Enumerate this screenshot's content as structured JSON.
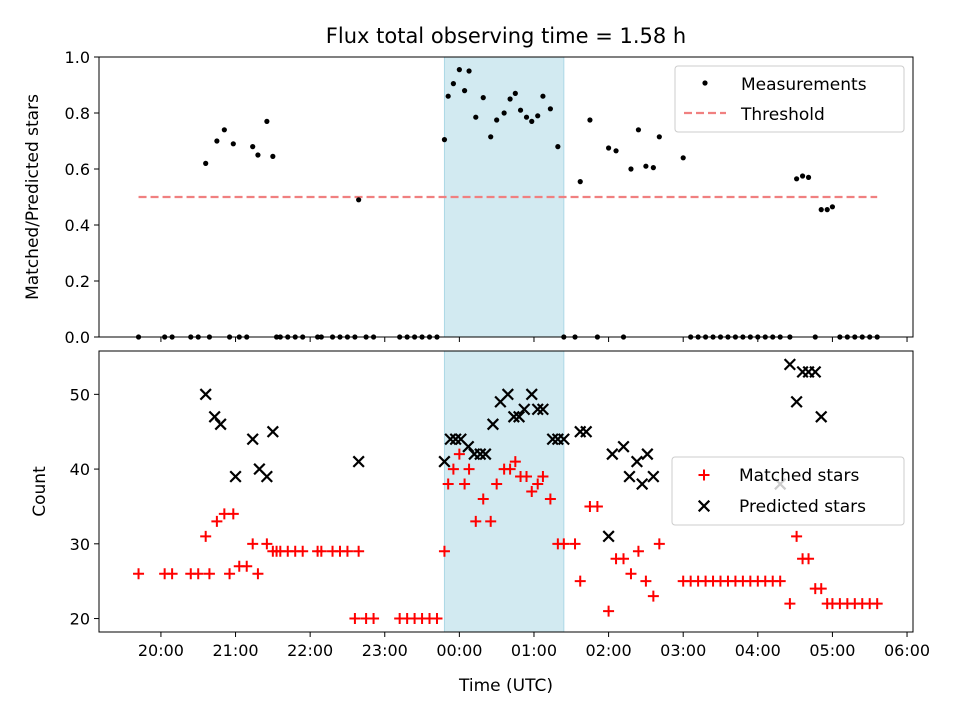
{
  "chart_data": [
    {
      "type": "scatter",
      "title": "Flux total observing time = 1.58 h",
      "xlabel": "",
      "ylabel": "Matched/Predicted stars",
      "xlim": [
        19.17,
        30.08
      ],
      "ylim": [
        0,
        1.0
      ],
      "yticks": [
        0.0,
        0.2,
        0.4,
        0.6,
        0.8,
        1.0
      ],
      "yticklabels": [
        "0.0",
        "0.2",
        "0.4",
        "0.6",
        "0.8",
        "1.0"
      ],
      "legend_position": "top-right",
      "highlight_span": {
        "x": [
          23.8,
          25.4
        ],
        "color": "#add8e6"
      },
      "threshold": {
        "name": "Threshold",
        "y": 0.5,
        "x": [
          19.7,
          29.6
        ],
        "color": "#f08080"
      },
      "series": [
        {
          "name": "Measurements",
          "color": "#000000",
          "x": [
            19.7,
            20.05,
            20.15,
            20.4,
            20.5,
            20.6,
            20.65,
            20.75,
            20.85,
            20.92,
            20.97,
            21.05,
            21.15,
            21.23,
            21.3,
            21.42,
            21.5,
            21.55,
            21.6,
            21.7,
            21.8,
            21.9,
            22.1,
            22.15,
            22.3,
            22.4,
            22.5,
            22.6,
            22.65,
            22.75,
            22.85,
            23.2,
            23.3,
            23.4,
            23.5,
            23.6,
            23.7,
            23.8,
            23.85,
            23.92,
            24.0,
            24.07,
            24.13,
            24.22,
            24.32,
            24.42,
            24.5,
            24.6,
            24.68,
            24.75,
            24.82,
            24.9,
            24.97,
            25.05,
            25.12,
            25.22,
            25.32,
            25.4,
            25.55,
            25.62,
            25.75,
            25.85,
            26.0,
            26.1,
            26.2,
            26.3,
            26.4,
            26.5,
            26.6,
            26.68,
            27.0,
            27.1,
            27.2,
            27.3,
            27.4,
            27.5,
            27.6,
            27.7,
            27.8,
            27.9,
            28.0,
            28.1,
            28.2,
            28.3,
            28.43,
            28.52,
            28.6,
            28.68,
            28.77,
            28.85,
            28.93,
            29.0,
            29.1,
            29.2,
            29.3,
            29.4,
            29.5,
            29.6
          ],
          "y": [
            0.0,
            0.0,
            0.0,
            0.0,
            0.0,
            0.62,
            0.0,
            0.7,
            0.74,
            0.0,
            0.69,
            0.0,
            0.0,
            0.68,
            0.65,
            0.77,
            0.645,
            0.0,
            0.0,
            0.0,
            0.0,
            0.0,
            0.0,
            0.0,
            0.0,
            0.0,
            0.0,
            0.0,
            0.49,
            0.0,
            0.0,
            0.0,
            0.0,
            0.0,
            0.0,
            0.0,
            0.0,
            0.705,
            0.86,
            0.905,
            0.955,
            0.88,
            0.95,
            0.785,
            0.855,
            0.715,
            0.775,
            0.8,
            0.85,
            0.87,
            0.81,
            0.785,
            0.77,
            0.79,
            0.86,
            0.815,
            0.68,
            0.0,
            0.0,
            0.555,
            0.775,
            0.0,
            0.675,
            0.665,
            0.0,
            0.6,
            0.74,
            0.61,
            0.605,
            0.715,
            0.64,
            0.0,
            0.0,
            0.0,
            0.0,
            0.0,
            0.0,
            0.0,
            0.0,
            0.0,
            0.0,
            0.0,
            0.0,
            0.0,
            0.0,
            0.565,
            0.575,
            0.57,
            0.0,
            0.455,
            0.455,
            0.465,
            0.0,
            0.0,
            0.0,
            0.0,
            0.0,
            0.0
          ]
        }
      ]
    },
    {
      "type": "scatter",
      "title": "",
      "xlabel": "Time (UTC)",
      "ylabel": "Count",
      "xlim": [
        19.17,
        30.08
      ],
      "ylim": [
        18.2,
        55.8
      ],
      "yticks": [
        20,
        30,
        40,
        50
      ],
      "yticklabels": [
        "20",
        "30",
        "40",
        "50"
      ],
      "xticks": [
        20,
        21,
        22,
        23,
        24,
        25,
        26,
        27,
        28,
        29,
        30
      ],
      "xticklabels": [
        "20:00",
        "21:00",
        "22:00",
        "23:00",
        "00:00",
        "01:00",
        "02:00",
        "03:00",
        "04:00",
        "05:00",
        "06:00"
      ],
      "legend_position": "center-right",
      "highlight_span": {
        "x": [
          23.8,
          25.4
        ],
        "color": "#add8e6"
      },
      "series": [
        {
          "name": "Matched stars",
          "color": "#ff0000",
          "x": [
            19.7,
            20.05,
            20.15,
            20.4,
            20.5,
            20.6,
            20.65,
            20.75,
            20.85,
            20.92,
            20.97,
            21.05,
            21.15,
            21.23,
            21.3,
            21.42,
            21.5,
            21.55,
            21.6,
            21.7,
            21.8,
            21.9,
            22.1,
            22.15,
            22.3,
            22.4,
            22.5,
            22.6,
            22.65,
            22.75,
            22.85,
            23.2,
            23.3,
            23.4,
            23.5,
            23.6,
            23.7,
            23.8,
            23.85,
            23.92,
            24.0,
            24.07,
            24.13,
            24.22,
            24.32,
            24.42,
            24.5,
            24.6,
            24.68,
            24.75,
            24.82,
            24.9,
            24.97,
            25.05,
            25.12,
            25.22,
            25.32,
            25.4,
            25.55,
            25.62,
            25.75,
            25.85,
            26.0,
            26.1,
            26.2,
            26.3,
            26.4,
            26.5,
            26.6,
            26.68,
            27.0,
            27.1,
            27.2,
            27.3,
            27.4,
            27.5,
            27.6,
            27.7,
            27.8,
            27.9,
            28.0,
            28.1,
            28.2,
            28.3,
            28.43,
            28.52,
            28.6,
            28.68,
            28.77,
            28.85,
            28.93,
            29.0,
            29.1,
            29.2,
            29.3,
            29.4,
            29.5,
            29.6
          ],
          "y": [
            26,
            26,
            26,
            26,
            26,
            31,
            26,
            33,
            34,
            26,
            34,
            27,
            27,
            30,
            26,
            30,
            29,
            29,
            29,
            29,
            29,
            29,
            29,
            29,
            29,
            29,
            29,
            20,
            29,
            20,
            20,
            20,
            20,
            20,
            20,
            20,
            20,
            29,
            38,
            40,
            42,
            38,
            40,
            33,
            36,
            33,
            38,
            40,
            40,
            41,
            39,
            39,
            37,
            38,
            39,
            36,
            30,
            30,
            30,
            25,
            35,
            35,
            21,
            28,
            28,
            26,
            29,
            25,
            23,
            30,
            25,
            25,
            25,
            25,
            25,
            25,
            25,
            25,
            25,
            25,
            25,
            25,
            25,
            25,
            22,
            31,
            28,
            28,
            24,
            24,
            22,
            22,
            22,
            22,
            22,
            22,
            22,
            22
          ]
        },
        {
          "name": "Predicted stars",
          "color": "#000000",
          "x": [
            20.6,
            20.72,
            20.8,
            21.0,
            21.23,
            21.32,
            21.42,
            21.5,
            22.65,
            23.8,
            23.88,
            23.95,
            24.02,
            24.12,
            24.2,
            24.28,
            24.35,
            24.45,
            24.55,
            24.65,
            24.73,
            24.8,
            24.87,
            24.97,
            25.05,
            25.12,
            25.25,
            25.32,
            25.4,
            25.62,
            25.7,
            26.0,
            26.05,
            26.2,
            26.28,
            26.38,
            26.45,
            26.52,
            26.6,
            28.3,
            28.43,
            28.52,
            28.6,
            28.68,
            28.77,
            28.85
          ],
          "y": [
            50,
            47,
            46,
            39,
            44,
            40,
            39,
            45,
            41,
            41,
            44,
            44,
            44,
            43,
            42,
            42,
            42,
            46,
            49,
            50,
            47,
            47,
            48,
            50,
            48,
            48,
            44,
            44,
            44,
            45,
            45,
            31,
            42,
            43,
            39,
            41,
            38,
            42,
            39,
            38,
            54,
            49,
            53,
            53,
            53,
            47
          ]
        }
      ]
    }
  ]
}
